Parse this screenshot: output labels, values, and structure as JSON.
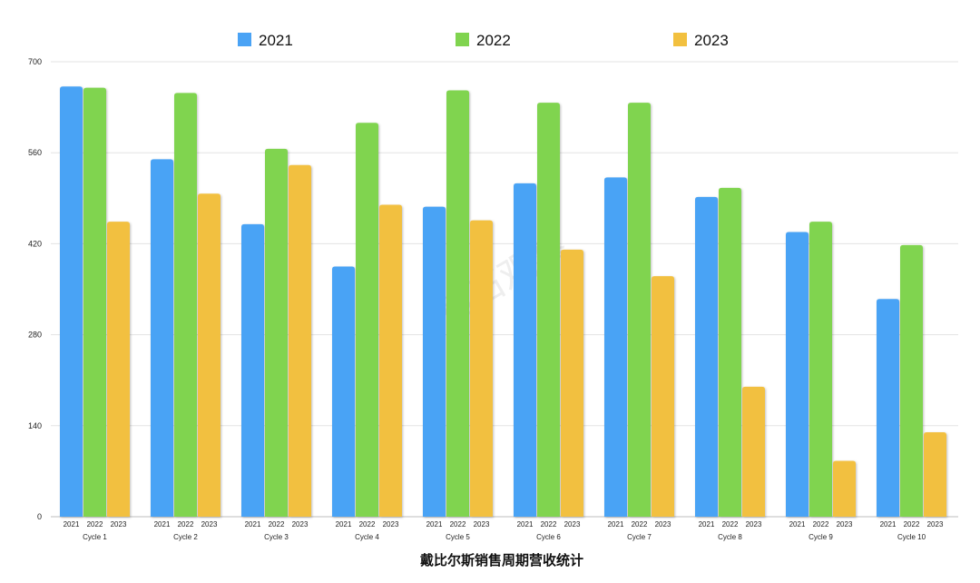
{
  "chart_data": {
    "type": "bar",
    "title": "戴比尔斯销售周期营收统计",
    "watermark": "钻石观察",
    "categories": [
      "Cycle 1",
      "Cycle 2",
      "Cycle 3",
      "Cycle 4",
      "Cycle 5",
      "Cycle 6",
      "Cycle 7",
      "Cycle 8",
      "Cycle 9",
      "Cycle 10"
    ],
    "series": [
      {
        "name": "2021",
        "color": "#4aa3f5",
        "values": [
          662,
          550,
          450,
          385,
          477,
          513,
          522,
          492,
          438,
          335
        ]
      },
      {
        "name": "2022",
        "color": "#80d44f",
        "values": [
          660,
          652,
          566,
          606,
          656,
          637,
          637,
          506,
          454,
          418
        ]
      },
      {
        "name": "2023",
        "color": "#f2c03f",
        "values": [
          454,
          497,
          541,
          480,
          456,
          411,
          370,
          200,
          86,
          130
        ]
      }
    ],
    "ylim": [
      0,
      700
    ],
    "yticks": [
      0,
      140,
      280,
      420,
      560,
      700
    ],
    "legend_position": "top",
    "grid": true
  }
}
